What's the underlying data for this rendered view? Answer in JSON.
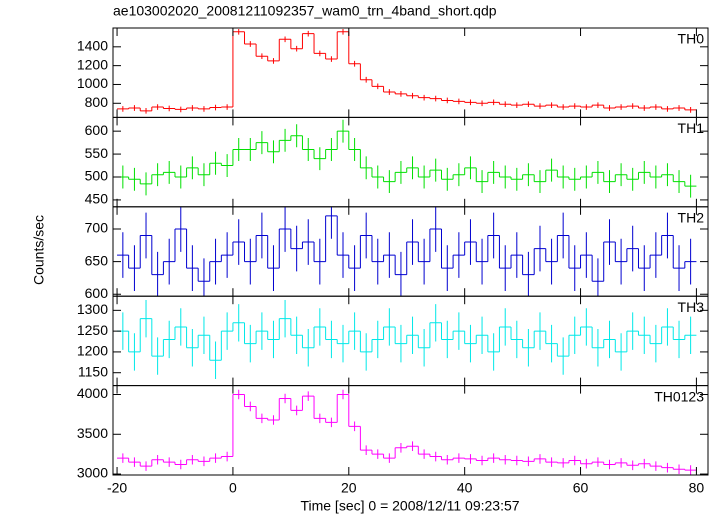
{
  "chart_data": {
    "type": "step",
    "title": "ae103002020_20081211092357_wam0_trn_4band_short.qdp",
    "xlabel": "Time [sec] 0 = 2008/12/11 09:23:57",
    "ylabel": "Counts/sec",
    "x": [
      -19,
      -17,
      -15,
      -13,
      -11,
      -9,
      -7,
      -5,
      -3,
      -1,
      1,
      3,
      5,
      7,
      9,
      11,
      13,
      15,
      17,
      19,
      21,
      23,
      25,
      27,
      29,
      31,
      33,
      35,
      37,
      39,
      41,
      43,
      45,
      47,
      49,
      51,
      53,
      55,
      57,
      59,
      61,
      63,
      65,
      67,
      69,
      71,
      73,
      75,
      77,
      79
    ],
    "xlim": [
      -20.7,
      82
    ],
    "xticks": [
      -20,
      0,
      20,
      40,
      60,
      80
    ],
    "panels": [
      {
        "name": "TH0",
        "color": "#ff0000",
        "error": 30,
        "ylim": [
          650,
          1600
        ],
        "yticks": [
          800,
          1000,
          1200,
          1400
        ],
        "values": [
          740,
          750,
          720,
          760,
          745,
          735,
          750,
          740,
          755,
          760,
          1560,
          1430,
          1300,
          1250,
          1480,
          1380,
          1540,
          1330,
          1270,
          1560,
          1220,
          1050,
          980,
          920,
          900,
          880,
          860,
          850,
          830,
          820,
          810,
          800,
          810,
          790,
          780,
          790,
          770,
          780,
          760,
          770,
          760,
          780,
          750,
          760,
          770,
          750,
          760,
          740,
          750,
          730
        ]
      },
      {
        "name": "TH1",
        "color": "#00e000",
        "error": 25,
        "ylim": [
          435,
          630
        ],
        "yticks": [
          450,
          500,
          550,
          600
        ],
        "values": [
          500,
          495,
          485,
          505,
          510,
          500,
          520,
          505,
          530,
          525,
          560,
          560,
          575,
          555,
          580,
          590,
          560,
          540,
          560,
          600,
          560,
          520,
          500,
          490,
          510,
          520,
          500,
          515,
          495,
          505,
          520,
          490,
          510,
          500,
          495,
          505,
          490,
          515,
          500,
          495,
          500,
          510,
          490,
          505,
          495,
          510,
          500,
          505,
          490,
          480
        ]
      },
      {
        "name": "TH2",
        "color": "#0000d0",
        "error": 35,
        "ylim": [
          597,
          734
        ],
        "yticks": [
          600,
          650,
          700
        ],
        "values": [
          660,
          640,
          690,
          630,
          650,
          700,
          640,
          620,
          650,
          660,
          680,
          650,
          690,
          640,
          700,
          670,
          680,
          650,
          720,
          660,
          640,
          690,
          650,
          660,
          630,
          680,
          650,
          700,
          640,
          660,
          680,
          650,
          690,
          640,
          660,
          630,
          670,
          650,
          690,
          640,
          660,
          620,
          680,
          650,
          670,
          640,
          660,
          690,
          640,
          650
        ]
      },
      {
        "name": "TH3",
        "color": "#00e8e8",
        "error": 45,
        "ylim": [
          1119,
          1334
        ],
        "yticks": [
          1150,
          1200,
          1250,
          1300
        ],
        "values": [
          1250,
          1200,
          1280,
          1190,
          1230,
          1260,
          1210,
          1240,
          1180,
          1250,
          1270,
          1220,
          1250,
          1230,
          1280,
          1240,
          1210,
          1260,
          1230,
          1220,
          1250,
          1200,
          1230,
          1260,
          1220,
          1240,
          1210,
          1270,
          1230,
          1250,
          1220,
          1240,
          1200,
          1260,
          1230,
          1210,
          1250,
          1220,
          1190,
          1240,
          1260,
          1210,
          1230,
          1200,
          1250,
          1240,
          1220,
          1260,
          1230,
          1240
        ]
      },
      {
        "name": "TH0123",
        "color": "#ff00ff",
        "error": 60,
        "ylim": [
          2988,
          4112
        ],
        "yticks": [
          3000,
          3500,
          4000
        ],
        "values": [
          3200,
          3150,
          3100,
          3180,
          3150,
          3120,
          3180,
          3160,
          3200,
          3220,
          4000,
          3850,
          3700,
          3680,
          3950,
          3800,
          3980,
          3700,
          3650,
          4000,
          3600,
          3300,
          3250,
          3200,
          3330,
          3350,
          3250,
          3220,
          3180,
          3200,
          3190,
          3170,
          3200,
          3180,
          3170,
          3160,
          3190,
          3150,
          3140,
          3170,
          3130,
          3150,
          3120,
          3140,
          3110,
          3130,
          3100,
          3080,
          3060,
          3050
        ]
      }
    ]
  }
}
